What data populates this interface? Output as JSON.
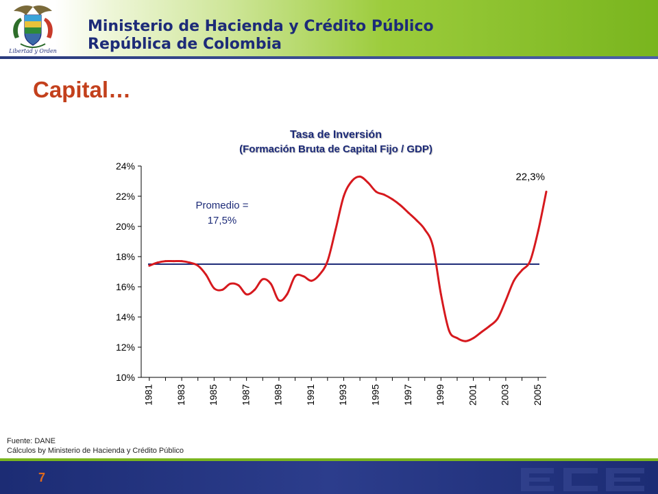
{
  "header": {
    "ministry": "Ministerio de Hacienda y Crédito Público",
    "republic": "República de Colombia",
    "motto": "Libertad y Orden"
  },
  "slide": {
    "title": "Capital…",
    "page_number": "7"
  },
  "source": {
    "line1": "Fuente: DANE",
    "line2": "Cálculos by Ministerio de Hacienda y Crédito Público"
  },
  "colors": {
    "series_line": "#d6191e",
    "average_line": "#1d2b78",
    "title_text": "#1d2b78",
    "slide_title": "#c3401c",
    "header_green": "#79b51e",
    "footer_blue": "#1c2c74"
  },
  "chart_data": {
    "type": "line",
    "title": "Tasa de Inversión",
    "subtitle": "(Formación Bruta de Capital Fijo / GDP)",
    "xlabel": "",
    "ylabel": "",
    "ylim": [
      0.1,
      0.24
    ],
    "xlim": [
      1980.5,
      2005.5
    ],
    "yticks": [
      0.1,
      0.12,
      0.14,
      0.16,
      0.18,
      0.2,
      0.22,
      0.24
    ],
    "ytick_labels": [
      "10%",
      "12%",
      "14%",
      "16%",
      "18%",
      "20%",
      "22%",
      "24%"
    ],
    "xtick_labels": [
      "1981",
      "1983",
      "1985",
      "1987",
      "1989",
      "1991",
      "1993",
      "1995",
      "1997",
      "1999",
      "2001",
      "2003",
      "2005"
    ],
    "grid": false,
    "series": [
      {
        "smooth": true,
        "x": [
          1981,
          1981.5,
          1982,
          1982.5,
          1983,
          1983.5,
          1984,
          1984.5,
          1985,
          1985.5,
          1986,
          1986.5,
          1987,
          1987.5,
          1988,
          1988.5,
          1989,
          1989.5,
          1990,
          1990.5,
          1991,
          1991.5,
          1992,
          1992.5,
          1993,
          1993.5,
          1994,
          1994.5,
          1995,
          1995.5,
          1996,
          1996.5,
          1997,
          1997.5,
          1998,
          1998.5,
          1999,
          1999.5,
          2000,
          2000.5,
          2001,
          2001.5,
          2002,
          2002.5,
          2003,
          2003.5,
          2004,
          2004.5,
          2005,
          2005.5
        ],
        "y": [
          0.174,
          0.176,
          0.177,
          0.177,
          0.177,
          0.176,
          0.174,
          0.168,
          0.159,
          0.158,
          0.162,
          0.161,
          0.155,
          0.158,
          0.165,
          0.162,
          0.151,
          0.155,
          0.167,
          0.167,
          0.164,
          0.168,
          0.177,
          0.198,
          0.22,
          0.23,
          0.233,
          0.229,
          0.223,
          0.221,
          0.218,
          0.214,
          0.209,
          0.204,
          0.198,
          0.187,
          0.155,
          0.131,
          0.126,
          0.124,
          0.126,
          0.13,
          0.134,
          0.139,
          0.151,
          0.164,
          0.171,
          0.177,
          0.197,
          0.223
        ]
      }
    ],
    "reference_line": {
      "y": 0.175,
      "label_line1": "Promedio =",
      "label_line2": "17,5%"
    },
    "annotations": [
      {
        "text": "22,3%",
        "x": 2005.5,
        "y": 0.223
      }
    ]
  }
}
